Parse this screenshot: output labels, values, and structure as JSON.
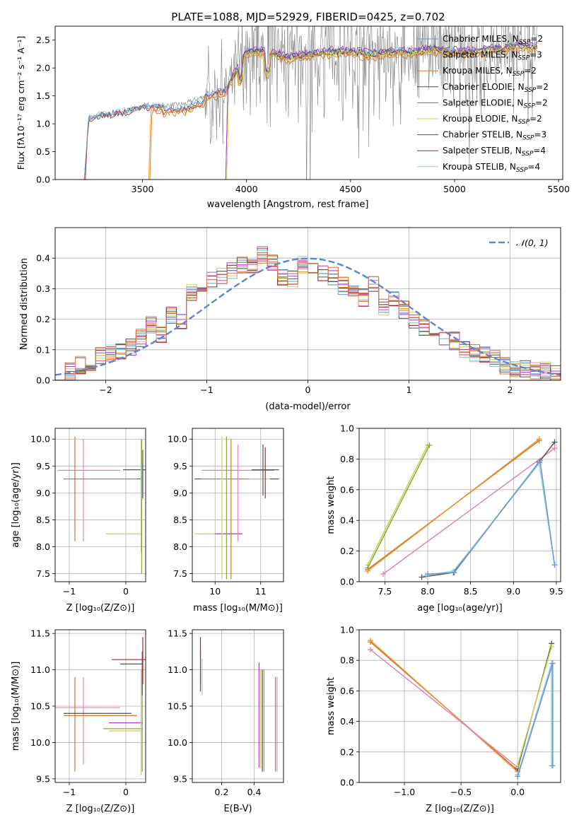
{
  "figure_title": "PLATE=1088, MJD=52929, FIBERID=0425, z=0.702",
  "colors": {
    "Chabrier MILES": "#6f95ce",
    "Salpeter MILES": "#f0932f",
    "Kroupa MILES": "#c97a2f",
    "Chabrier ELODIE": "#4f4f4f",
    "Salpeter ELODIE": "#b23bc8",
    "Kroupa ELODIE": "#c2d84a",
    "Chabrier STELIB": "#555555",
    "Salpeter STELIB": "#b32222",
    "Kroupa STELIB": "#8fd1de",
    "pink": "#e67fb9",
    "orange_red": "#e0703a",
    "olive": "#8aa83a",
    "data_gray": "#808080",
    "normal_curve": "#5b86d1"
  },
  "chart_data": [
    {
      "id": "spectrum",
      "type": "line",
      "title": "PLATE=1088, MJD=52929, FIBERID=0425, z=0.702",
      "xlabel": "wavelength [Angstrom, rest frame]",
      "ylabel": "Flux [fλ10⁻¹⁷ erg cm⁻² s⁻¹ A⁻¹]",
      "xlim": [
        3080,
        5520
      ],
      "ylim": [
        0,
        2.75
      ],
      "xticks": [
        "3500",
        "4000",
        "4500",
        "5000",
        "5500"
      ],
      "yticks": [
        "0.0",
        "0.5",
        "1.0",
        "1.5",
        "2.0",
        "2.5"
      ],
      "legend": [
        "Chabrier MILES, N_SSP=2",
        "Salpeter MILES, N_SSP=3",
        "Kroupa MILES, N_SSP=2",
        "Chabrier ELODIE, N_SSP=2",
        "Salpeter ELODIE, N_SSP=2",
        "Kroupa ELODIE, N_SSP=2",
        "Chabrier STELIB, N_SSP=3",
        "Salpeter STELIB, N_SSP=4",
        "Kroupa STELIB, N_SSP=4"
      ],
      "legend_labels": [
        {
          "label": "Chabrier MILES, N",
          "sub": "SSP",
          "tail": "=2"
        },
        {
          "label": "Salpeter MILES, N",
          "sub": "SSP",
          "tail": "=3"
        },
        {
          "label": "Kroupa MILES, N",
          "sub": "SSP",
          "tail": "=2"
        },
        {
          "label": "Chabrier ELODIE, N",
          "sub": "SSP",
          "tail": "=2"
        },
        {
          "label": "Salpeter ELODIE, N",
          "sub": "SSP",
          "tail": "=2"
        },
        {
          "label": "Kroupa ELODIE, N",
          "sub": "SSP",
          "tail": "=2"
        },
        {
          "label": "Chabrier STELIB, N",
          "sub": "SSP",
          "tail": "=3"
        },
        {
          "label": "Salpeter STELIB, N",
          "sub": "SSP",
          "tail": "=4"
        },
        {
          "label": "Kroupa STELIB, N",
          "sub": "SSP",
          "tail": "=4"
        }
      ],
      "legend_placement": "upper right",
      "model_start_wavelengths": {
        "MILES": 3530,
        "ELODIE": 3900,
        "STELIB": 3220
      },
      "continuum_points": [
        [
          3220,
          0.0
        ],
        [
          3240,
          1.1
        ],
        [
          3300,
          1.15
        ],
        [
          3400,
          1.2
        ],
        [
          3500,
          1.3
        ],
        [
          3600,
          1.32
        ],
        [
          3700,
          1.35
        ],
        [
          3800,
          1.5
        ],
        [
          3900,
          1.6
        ],
        [
          4000,
          2.3
        ],
        [
          4100,
          2.3
        ],
        [
          4200,
          2.2
        ],
        [
          4300,
          2.25
        ],
        [
          4400,
          2.3
        ],
        [
          4500,
          2.3
        ],
        [
          4600,
          2.25
        ],
        [
          4700,
          2.3
        ],
        [
          4800,
          2.3
        ],
        [
          4900,
          2.35
        ],
        [
          5000,
          2.3
        ],
        [
          5100,
          2.3
        ],
        [
          5200,
          2.35
        ],
        [
          5300,
          2.4
        ],
        [
          5400,
          2.4
        ]
      ]
    },
    {
      "id": "residuals",
      "type": "line",
      "xlabel": "(data-model)/error",
      "ylabel": "Normed distribution",
      "xlim": [
        -2.5,
        2.5
      ],
      "ylim": [
        0,
        0.5
      ],
      "xticks": [
        "−2",
        "−1",
        "0",
        "1",
        "2"
      ],
      "yticks": [
        "0.0",
        "0.1",
        "0.2",
        "0.3",
        "0.4"
      ],
      "grid": true,
      "legend": [
        "𝒩(0, 1)"
      ],
      "legend_placement": "upper right",
      "hist_base": [
        0.03,
        0.03,
        0.05,
        0.06,
        0.08,
        0.09,
        0.09,
        0.11,
        0.14,
        0.18,
        0.15,
        0.21,
        0.19,
        0.29,
        0.31,
        0.33,
        0.34,
        0.36,
        0.38,
        0.38,
        0.41,
        0.39,
        0.34,
        0.33,
        0.38,
        0.37,
        0.35,
        0.34,
        0.31,
        0.29,
        0.27,
        0.31,
        0.24,
        0.27,
        0.23,
        0.2,
        0.17,
        0.16,
        0.14,
        0.13,
        0.1,
        0.09,
        0.08,
        0.07,
        0.05,
        0.04,
        0.04,
        0.03,
        0.03,
        0.02
      ]
    },
    {
      "id": "z-vs-age",
      "type": "scatter",
      "xlabel": "Z [log₁₀(Z/Z⊙)]",
      "ylabel": "age  [log₁₀(age/yr)]",
      "xlim": [
        -1.25,
        0.35
      ],
      "ylim": [
        7.35,
        10.2
      ],
      "xticks": [
        "−1",
        "0"
      ],
      "yticks": [
        "7.5",
        "8.0",
        "8.5",
        "9.0",
        "9.5",
        "10.0"
      ],
      "grid": true
    },
    {
      "id": "mass-vs-age",
      "type": "scatter",
      "xlabel": "mass [log₁₀(M/M⊙)]",
      "ylabel": "",
      "xlim": [
        9.5,
        11.5
      ],
      "ylim": [
        7.35,
        10.2
      ],
      "xticks": [
        "10",
        "11"
      ],
      "yticks": [
        "7.5",
        "8.0",
        "8.5",
        "9.0",
        "9.5",
        "10.0"
      ],
      "grid": true
    },
    {
      "id": "age-vs-weight",
      "type": "line",
      "xlabel": "age  [log₁₀(age/yr)]",
      "ylabel": "mass weight",
      "xlim": [
        7.2,
        9.55
      ],
      "ylim": [
        0,
        1.0
      ],
      "xticks": [
        "7.5",
        "8.0",
        "8.5",
        "9.0",
        "9.5"
      ],
      "yticks": [
        "0.0",
        "0.2",
        "0.4",
        "0.6",
        "0.8",
        "1.0"
      ],
      "grid": true,
      "series": [
        {
          "color": "#c2d84a",
          "points": [
            [
              7.3,
              0.11
            ],
            [
              8.0,
              0.89
            ]
          ]
        },
        {
          "color": "#8aa83a",
          "points": [
            [
              7.3,
              0.09
            ],
            [
              8.02,
              0.89
            ]
          ]
        },
        {
          "color": "#c97a2f",
          "points": [
            [
              7.3,
              0.08
            ],
            [
              9.3,
              0.92
            ]
          ]
        },
        {
          "color": "#f0932f",
          "points": [
            [
              7.3,
              0.07
            ],
            [
              9.3,
              0.93
            ]
          ]
        },
        {
          "color": "#e67fb9",
          "points": [
            [
              7.48,
              0.05
            ],
            [
              9.48,
              0.87
            ]
          ]
        },
        {
          "color": "#555555",
          "points": [
            [
              7.93,
              0.03
            ],
            [
              8.3,
              0.06
            ],
            [
              9.3,
              0.78
            ],
            [
              9.48,
              0.91
            ]
          ]
        },
        {
          "color": "#8fd1de",
          "points": [
            [
              7.98,
              0.04
            ],
            [
              8.3,
              0.07
            ],
            [
              9.3,
              0.77
            ],
            [
              9.48,
              0.11
            ]
          ]
        },
        {
          "color": "#6f95ce",
          "points": [
            [
              8.0,
              0.05
            ],
            [
              8.31,
              0.06
            ],
            [
              9.31,
              0.79
            ],
            [
              9.48,
              0.11
            ]
          ]
        }
      ]
    },
    {
      "id": "z-vs-mass",
      "type": "scatter",
      "xlabel": "Z [log₁₀(Z/Z⊙)]",
      "ylabel": "mass [log₁₀(M/M⊙)]",
      "xlim": [
        -1.25,
        0.35
      ],
      "ylim": [
        9.45,
        11.55
      ],
      "xticks": [
        "−1",
        "0"
      ],
      "yticks": [
        "9.5",
        "10.0",
        "10.5",
        "11.0",
        "11.5"
      ],
      "grid": true
    },
    {
      "id": "ebv-vs-mass",
      "type": "scatter",
      "xlabel": "E(B-V)",
      "ylabel": "",
      "xlim": [
        0.02,
        0.58
      ],
      "ylim": [
        9.45,
        11.55
      ],
      "xticks": [
        "0.2",
        "0.4"
      ],
      "yticks": [
        "9.5",
        "10.0",
        "10.5",
        "11.0",
        "11.5"
      ],
      "grid": true
    },
    {
      "id": "z-vs-weight",
      "type": "line",
      "xlabel": "Z [log₁₀(Z/Z⊙)]",
      "ylabel": "mass weight",
      "xlim": [
        -1.4,
        0.38
      ],
      "ylim": [
        0,
        1.0
      ],
      "xticks": [
        "−1.0",
        "−0.5",
        "0.0"
      ],
      "yticks": [
        "0.0",
        "0.2",
        "0.4",
        "0.6",
        "0.8",
        "1.0"
      ],
      "grid": true,
      "series": [
        {
          "color": "#c97a2f",
          "points": [
            [
              -1.3,
              0.92
            ],
            [
              0.0,
              0.08
            ]
          ]
        },
        {
          "color": "#f0932f",
          "points": [
            [
              -1.3,
              0.93
            ],
            [
              0.0,
              0.07
            ]
          ]
        },
        {
          "color": "#e67fb9",
          "points": [
            [
              -1.3,
              0.87
            ],
            [
              0.0,
              0.1
            ]
          ]
        },
        {
          "color": "#555555",
          "points": [
            [
              0.0,
              0.09
            ],
            [
              0.3,
              0.91
            ]
          ]
        },
        {
          "color": "#c2d84a",
          "points": [
            [
              0.0,
              0.11
            ],
            [
              0.3,
              0.89
            ]
          ]
        },
        {
          "color": "#8fd1de",
          "points": [
            [
              0.0,
              0.05
            ],
            [
              0.3,
              0.78
            ],
            [
              0.3,
              0.11
            ]
          ]
        },
        {
          "color": "#6f95ce",
          "points": [
            [
              0.0,
              0.04
            ],
            [
              0.31,
              0.78
            ],
            [
              0.31,
              0.11
            ]
          ]
        }
      ]
    }
  ]
}
